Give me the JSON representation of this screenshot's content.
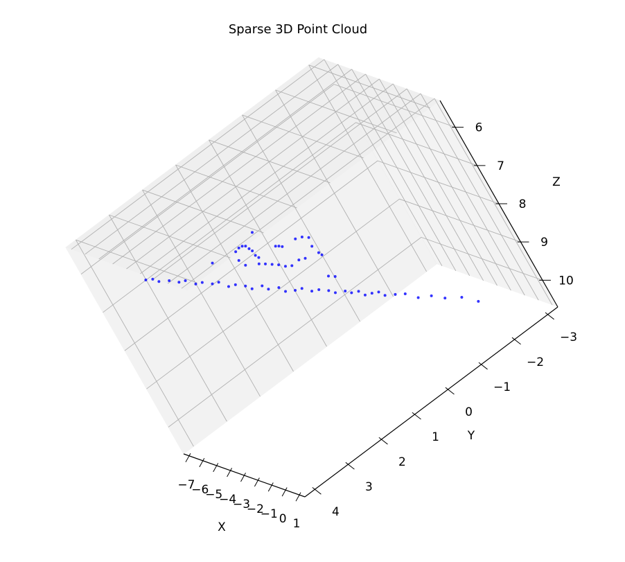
{
  "chart_data": {
    "type": "scatter3d",
    "title": "Sparse 3D Point Cloud",
    "xlabel": "X",
    "ylabel": "Y",
    "zlabel": "Z",
    "color": "#0000ff",
    "xlim": [
      -7.4,
      1.4
    ],
    "ylim": [
      -3.3,
      4.3
    ],
    "zlim": [
      5.3,
      10.7
    ],
    "z_inverted": true,
    "xticks": [
      {
        "value": -7,
        "label": "−7"
      },
      {
        "value": -6,
        "label": "−6"
      },
      {
        "value": -5,
        "label": "−5"
      },
      {
        "value": -4,
        "label": "−4"
      },
      {
        "value": -3,
        "label": "−3"
      },
      {
        "value": -2,
        "label": "−2"
      },
      {
        "value": -1,
        "label": "−1"
      },
      0,
      1
    ],
    "yticks": [
      {
        "value": -3,
        "label": "−3"
      },
      {
        "value": -2,
        "label": "−2"
      },
      {
        "value": -1,
        "label": "−1"
      },
      0,
      1,
      2,
      3,
      4
    ],
    "zticks": [
      6,
      7,
      8,
      9,
      10
    ],
    "grid": true,
    "x": [
      -4.76,
      -4.65,
      -4.55,
      -4.39,
      -4.23,
      -4.13,
      -3.97,
      -3.86,
      -3.7,
      -3.6,
      -3.44,
      -3.33,
      -3.18,
      -3.07,
      -2.91,
      -2.81,
      -2.65,
      -2.54,
      -2.38,
      -2.28,
      -2.12,
      -2.01,
      -1.86,
      -1.75,
      -1.59,
      -1.49,
      -1.38,
      -1.28,
      -1.17,
      -1.06,
      -0.96,
      -0.8,
      -0.64,
      -0.43,
      -0.22,
      -0.01,
      0.26,
      0.52,
      -3.33,
      -3.28,
      -3.23,
      -3.18,
      -3.12,
      -3.07,
      -3.02,
      -2.96,
      -3.28,
      -3.18,
      -2.96,
      -2.86,
      -2.75,
      -2.65,
      -2.54,
      -2.44,
      -2.7,
      -2.65,
      -2.59,
      -2.38,
      -2.28,
      -2.17,
      -2.12,
      -2.01,
      -1.96,
      -2.23,
      -2.33,
      -1.86,
      -1.75,
      -3.07,
      -3.7
    ],
    "y": [
      3.62,
      3.49,
      3.41,
      3.22,
      3.07,
      2.94,
      2.8,
      2.67,
      2.51,
      2.38,
      2.26,
      2.12,
      1.96,
      1.88,
      1.67,
      1.6,
      1.4,
      1.33,
      1.15,
      1.01,
      0.87,
      0.73,
      0.57,
      0.48,
      0.29,
      0.2,
      0.06,
      -0.01,
      -0.15,
      -0.28,
      -0.35,
      -0.54,
      -0.72,
      -0.9,
      -1.15,
      -1.36,
      -1.66,
      -1.9,
      1.72,
      1.62,
      1.54,
      1.48,
      1.45,
      1.42,
      1.42,
      1.39,
      1.77,
      1.71,
      1.46,
      1.35,
      1.24,
      1.13,
      1.03,
      0.91,
      0.96,
      0.9,
      0.85,
      0.53,
      0.39,
      0.28,
      0.33,
      0.29,
      0.26,
      0.59,
      0.72,
      0.4,
      0.29,
      1.2,
      2.26
    ],
    "z": [
      6.26,
      6.31,
      6.41,
      6.49,
      6.61,
      6.64,
      6.8,
      6.83,
      6.95,
      6.98,
      7.15,
      7.18,
      7.3,
      7.41,
      7.45,
      7.57,
      7.64,
      7.77,
      7.84,
      7.87,
      8.01,
      8.05,
      8.16,
      8.26,
      8.32,
      8.41,
      8.45,
      8.58,
      8.61,
      8.65,
      8.77,
      8.85,
      8.93,
      9.12,
      9.21,
      9.38,
      9.52,
      9.75,
      6.58,
      6.54,
      6.54,
      6.57,
      6.65,
      6.72,
      6.83,
      6.9,
      6.77,
      6.92,
      7.02,
      7.08,
      7.15,
      7.22,
      7.31,
      7.36,
      6.85,
      6.88,
      6.92,
      6.9,
      6.93,
      7.0,
      7.19,
      7.37,
      7.44,
      7.35,
      7.32,
      7.89,
      7.96,
      6.38,
      6.57
    ]
  }
}
